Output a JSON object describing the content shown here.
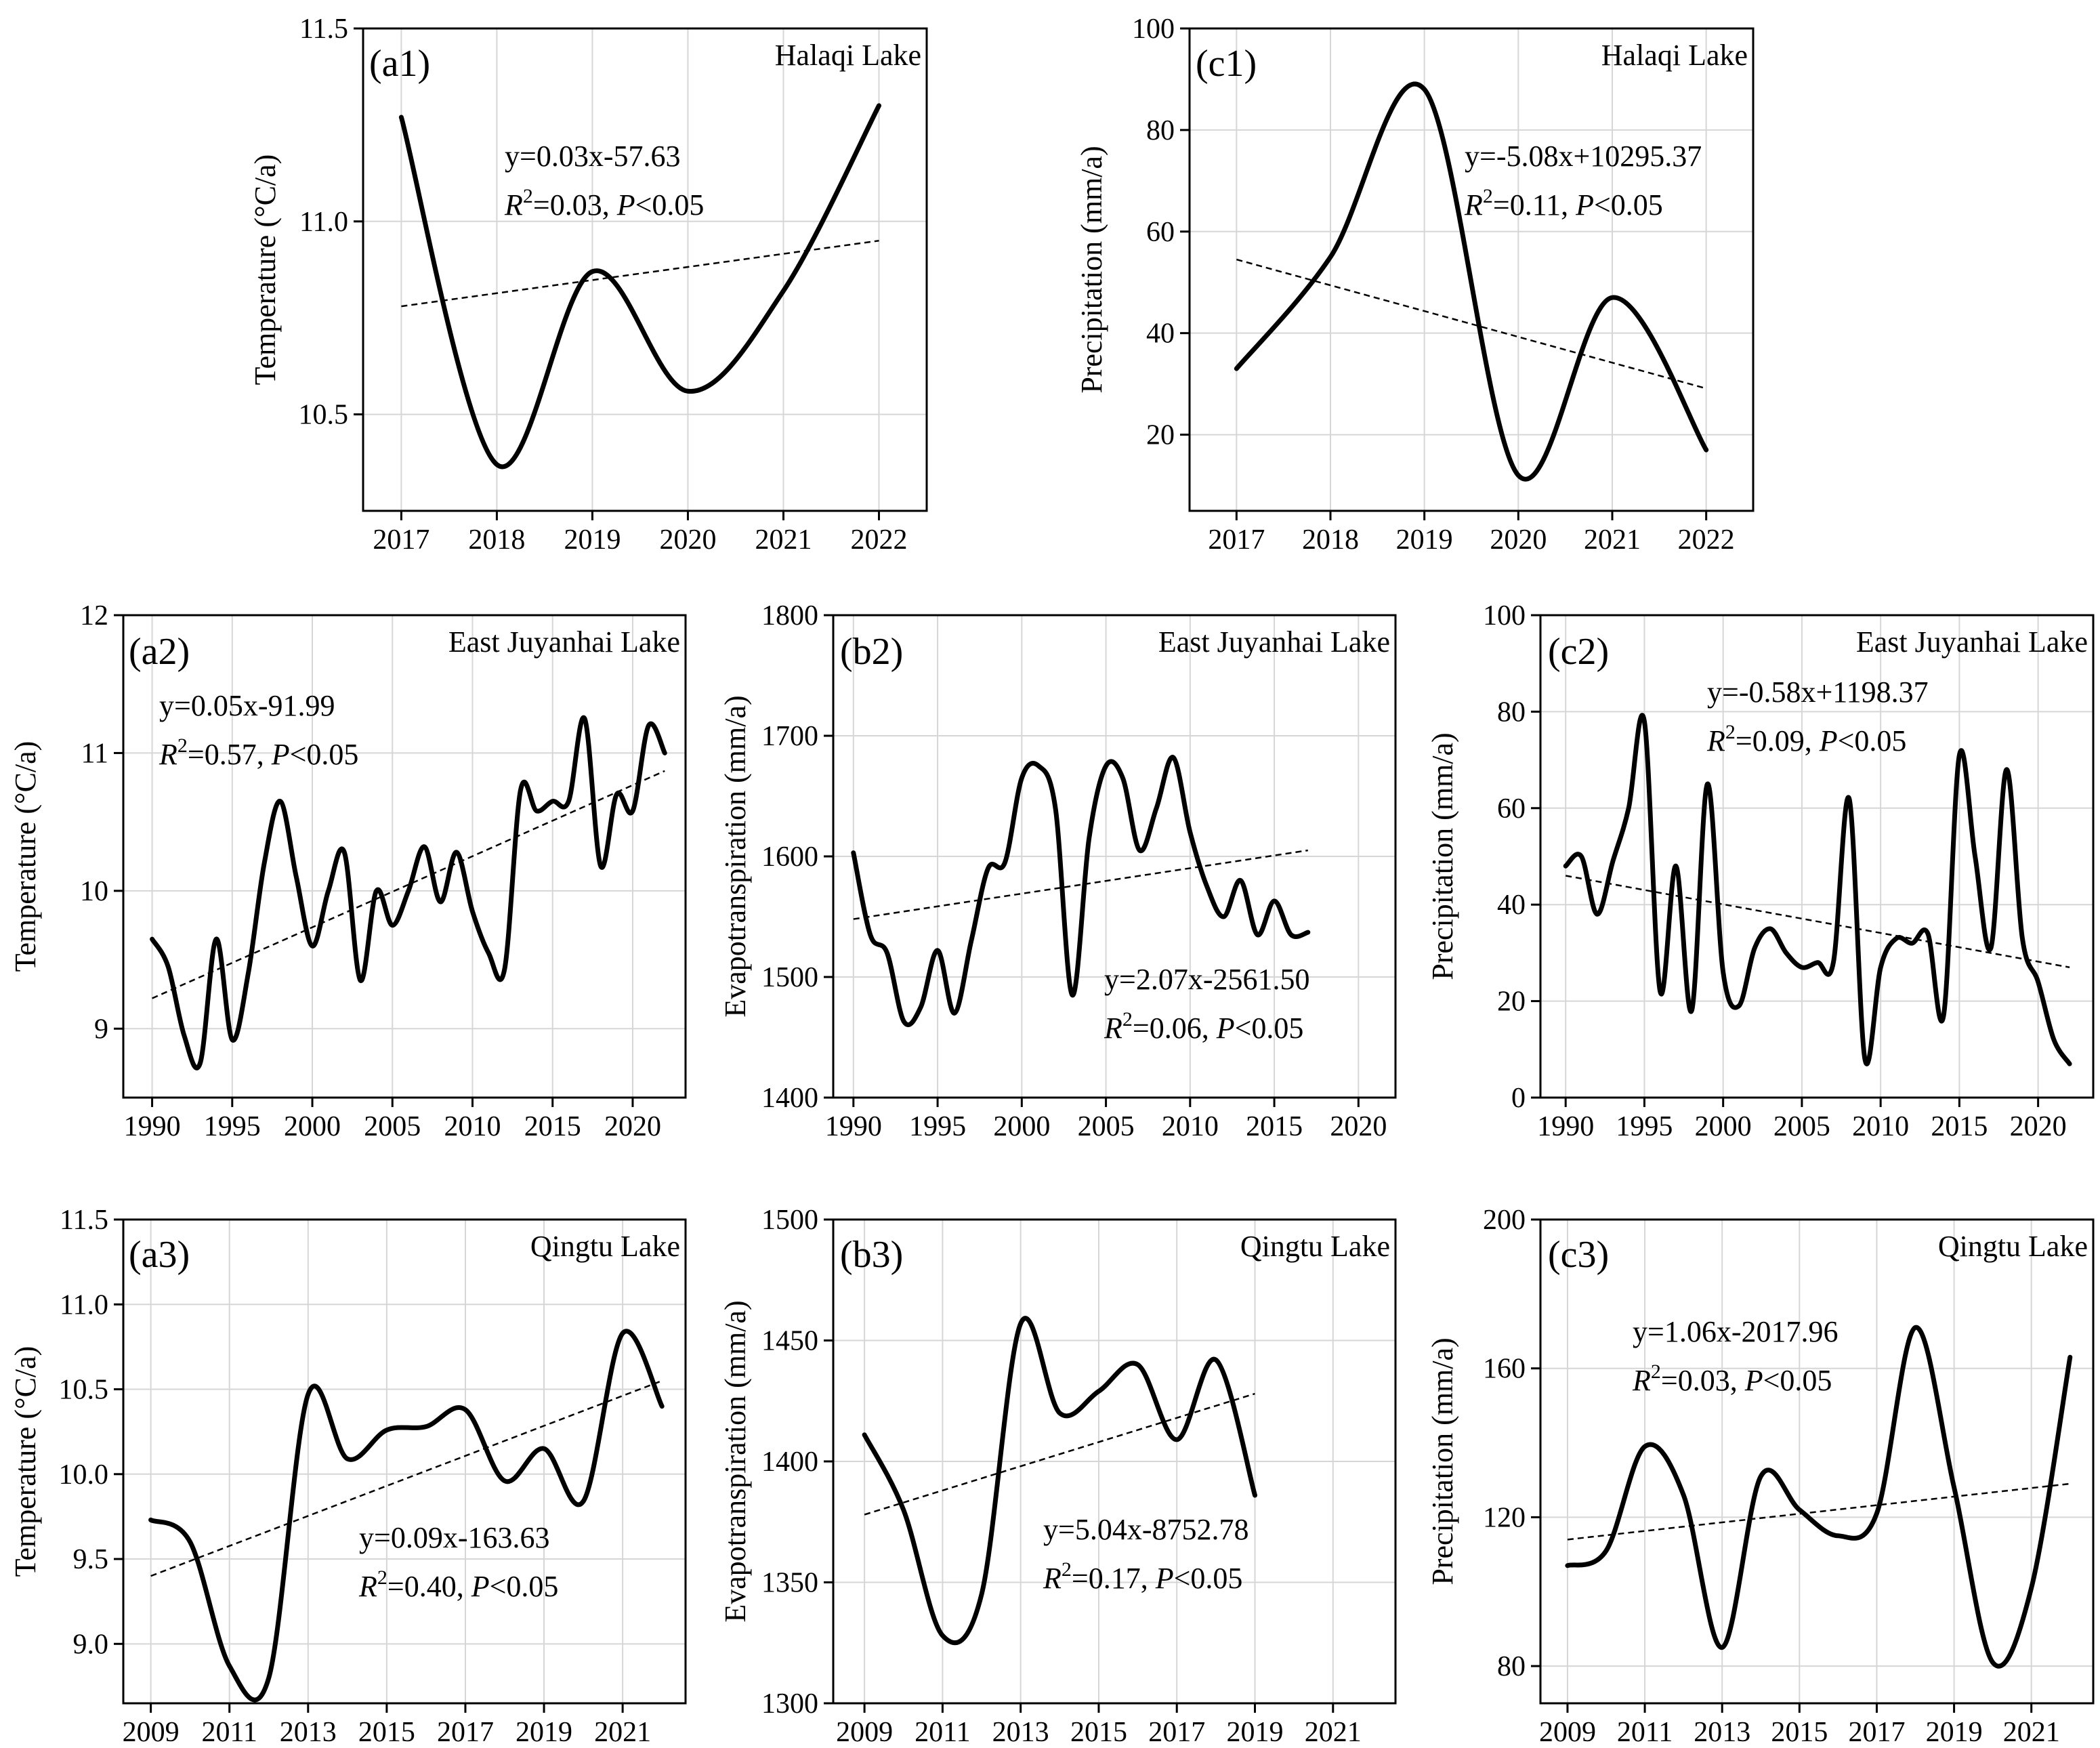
{
  "chart_data": [
    {
      "id": "a1",
      "panel_label": "(a1)",
      "lake": "Halaqi Lake",
      "type": "line",
      "ylabel": "Temperature (°C/a)",
      "xlabel": "",
      "x": [
        2017,
        2018,
        2019,
        2020,
        2021,
        2022
      ],
      "values": [
        11.27,
        10.37,
        10.87,
        10.56,
        10.82,
        11.3
      ],
      "xlim": [
        2016.6,
        2022.5
      ],
      "ylim": [
        10.25,
        11.5
      ],
      "xticks": [
        2017,
        2018,
        2019,
        2020,
        2021,
        2022
      ],
      "yticks": [
        10.5,
        11.0,
        11.5
      ],
      "ytick_labels": [
        "10.5",
        "11.0",
        "11.5"
      ],
      "trend": {
        "x": [
          2017,
          2022
        ],
        "y": [
          10.78,
          10.95
        ]
      },
      "equation": "y=0.03x-57.63",
      "r2_text": "=0.03, ",
      "p_text": "<0.05"
    },
    {
      "id": "c1",
      "panel_label": "(c1)",
      "lake": "Halaqi Lake",
      "type": "line",
      "ylabel": "Precipitation (mm/a)",
      "xlabel": "",
      "x": [
        2017,
        2018,
        2019,
        2020,
        2021,
        2022
      ],
      "values": [
        33,
        55,
        88,
        12,
        47,
        17
      ],
      "xlim": [
        2016.5,
        2022.5
      ],
      "ylim": [
        5,
        100
      ],
      "xticks": [
        2017,
        2018,
        2019,
        2020,
        2021,
        2022
      ],
      "yticks": [
        20,
        40,
        60,
        80,
        100
      ],
      "ytick_labels": [
        "20",
        "40",
        "60",
        "80",
        "100"
      ],
      "trend": {
        "x": [
          2017,
          2022
        ],
        "y": [
          54.5,
          29.1
        ]
      },
      "equation": "y=-5.08x+10295.37",
      "r2_text": "=0.11, ",
      "p_text": "<0.05"
    },
    {
      "id": "a2",
      "panel_label": "(a2)",
      "lake": "East Juyanhai Lake",
      "type": "line",
      "ylabel": "Temperature (°C/a)",
      "xlabel": "",
      "x": [
        1990,
        1991,
        1992,
        1993,
        1994,
        1995,
        1996,
        1997,
        1998,
        1999,
        2000,
        2001,
        2002,
        2003,
        2004,
        2005,
        2006,
        2007,
        2008,
        2009,
        2010,
        2011,
        2012,
        2013,
        2014,
        2015,
        2016,
        2017,
        2018,
        2019,
        2020,
        2021,
        2022
      ],
      "values": [
        9.65,
        9.45,
        8.95,
        8.75,
        9.65,
        8.92,
        9.4,
        10.2,
        10.65,
        10.1,
        9.6,
        10.0,
        10.28,
        9.35,
        10.0,
        9.75,
        10.0,
        10.32,
        9.92,
        10.28,
        9.85,
        9.55,
        9.43,
        10.73,
        10.58,
        10.65,
        10.65,
        11.25,
        10.18,
        10.7,
        10.58,
        11.2,
        11.0
      ],
      "xlim": [
        1988.2,
        2023.3
      ],
      "ylim": [
        8.5,
        12
      ],
      "xticks": [
        1990,
        1995,
        2000,
        2005,
        2010,
        2015,
        2020
      ],
      "yticks": [
        9,
        10,
        11,
        12
      ],
      "ytick_labels": [
        "9",
        "10",
        "11",
        "12"
      ],
      "trend": {
        "x": [
          1990,
          2022
        ],
        "y": [
          9.22,
          10.87
        ]
      },
      "equation": "y=0.05x-91.99",
      "r2_text": "=0.57, ",
      "p_text": "<0.05"
    },
    {
      "id": "b2",
      "panel_label": "(b2)",
      "lake": "East Juyanhai Lake",
      "type": "line",
      "ylabel": "Evapotranspiration (mm/a)",
      "xlabel": "",
      "x": [
        1990,
        1991,
        1992,
        1993,
        1994,
        1995,
        1996,
        1997,
        1998,
        1999,
        2000,
        2001,
        2002,
        2003,
        2004,
        2005,
        2006,
        2007,
        2008,
        2009,
        2010,
        2011,
        2012,
        2013,
        2014,
        2015,
        2016,
        2017
      ],
      "values": [
        1603,
        1535,
        1520,
        1463,
        1475,
        1522,
        1470,
        1530,
        1590,
        1595,
        1665,
        1675,
        1640,
        1485,
        1615,
        1675,
        1665,
        1605,
        1640,
        1682,
        1620,
        1575,
        1550,
        1580,
        1535,
        1563,
        1535,
        1537
      ],
      "xlim": [
        1988.8,
        2022.2
      ],
      "ylim": [
        1400,
        1800
      ],
      "xticks": [
        1990,
        1995,
        2000,
        2005,
        2010,
        2015,
        2020
      ],
      "yticks": [
        1400,
        1500,
        1600,
        1700,
        1800
      ],
      "ytick_labels": [
        "1400",
        "1500",
        "1600",
        "1700",
        "1800"
      ],
      "trend": {
        "x": [
          1990,
          2017
        ],
        "y": [
          1548,
          1605
        ]
      },
      "equation": "y=2.07x-2561.50",
      "r2_text": "=0.06, ",
      "p_text": "<0.05"
    },
    {
      "id": "c2",
      "panel_label": "(c2)",
      "lake": "East Juyanhai Lake",
      "type": "line",
      "ylabel": "Precipitation (mm/a)",
      "xlabel": "",
      "x": [
        1990,
        1991,
        1992,
        1993,
        1994,
        1995,
        1996,
        1997,
        1998,
        1999,
        2000,
        2001,
        2002,
        2003,
        2004,
        2005,
        2006,
        2007,
        2008,
        2009,
        2010,
        2011,
        2012,
        2013,
        2014,
        2015,
        2016,
        2017,
        2018,
        2019,
        2020,
        2021,
        2022
      ],
      "values": [
        48,
        50,
        38,
        49,
        60,
        78,
        22,
        48,
        18,
        65,
        26,
        19,
        31,
        35,
        30,
        27,
        28,
        28,
        62,
        8,
        27,
        33,
        32,
        34,
        17,
        71,
        50,
        31,
        68,
        33,
        24,
        12,
        7
      ],
      "xlim": [
        1988.4,
        2023.5
      ],
      "ylim": [
        0,
        100
      ],
      "xticks": [
        1990,
        1995,
        2000,
        2005,
        2010,
        2015,
        2020
      ],
      "yticks": [
        0,
        20,
        40,
        60,
        80,
        100
      ],
      "ytick_labels": [
        "0",
        "20",
        "40",
        "60",
        "80",
        "100"
      ],
      "trend": {
        "x": [
          1990,
          2022
        ],
        "y": [
          46,
          27
        ]
      },
      "equation": "y=-0.58x+1198.37",
      "r2_text": "=0.09, ",
      "p_text": "<0.05"
    },
    {
      "id": "a3",
      "panel_label": "(a3)",
      "lake": "Qingtu Lake",
      "type": "line",
      "ylabel": "Temperature (°C/a)",
      "xlabel": "",
      "x": [
        2009,
        2010,
        2011,
        2012,
        2013,
        2014,
        2015,
        2016,
        2017,
        2018,
        2019,
        2020,
        2021,
        2022
      ],
      "values": [
        9.73,
        9.6,
        8.87,
        8.8,
        10.47,
        10.09,
        10.26,
        10.28,
        10.38,
        9.96,
        10.15,
        9.84,
        10.83,
        10.4
      ],
      "xlim": [
        2008.3,
        2022.6
      ],
      "ylim": [
        8.65,
        11.5
      ],
      "xticks": [
        2009,
        2011,
        2013,
        2015,
        2017,
        2019,
        2021
      ],
      "yticks": [
        9.0,
        9.5,
        10.0,
        10.5,
        11.0,
        11.5
      ],
      "ytick_labels": [
        "9.0",
        "9.5",
        "10.0",
        "10.5",
        "11.0",
        "11.5"
      ],
      "trend": {
        "x": [
          2009,
          2022
        ],
        "y": [
          9.4,
          10.55
        ]
      },
      "equation": "y=0.09x-163.63",
      "r2_text": "=0.40, ",
      "p_text": "<0.05"
    },
    {
      "id": "b3",
      "panel_label": "(b3)",
      "lake": "Qingtu Lake",
      "type": "line",
      "ylabel": "Evapotranspiration (mm/a)",
      "xlabel": "",
      "x": [
        2009,
        2010,
        2011,
        2012,
        2013,
        2014,
        2015,
        2016,
        2017,
        2018,
        2019
      ],
      "values": [
        1411,
        1380,
        1328,
        1345,
        1457,
        1420,
        1429,
        1440,
        1409,
        1442,
        1386
      ],
      "xlim": [
        2008.2,
        2022.6
      ],
      "ylim": [
        1300,
        1500
      ],
      "xticks": [
        2009,
        2011,
        2013,
        2015,
        2017,
        2019,
        2021
      ],
      "yticks": [
        1300,
        1350,
        1400,
        1450,
        1500
      ],
      "ytick_labels": [
        "1300",
        "1350",
        "1400",
        "1450",
        "1500"
      ],
      "trend": {
        "x": [
          2009,
          2019
        ],
        "y": [
          1378,
          1428
        ]
      },
      "equation": "y=5.04x-8752.78",
      "r2_text": "=0.17, ",
      "p_text": "<0.05"
    },
    {
      "id": "c3",
      "panel_label": "(c3)",
      "lake": "Qingtu Lake",
      "type": "line",
      "ylabel": "Precipitation (mm/a)",
      "xlabel": "",
      "x": [
        2009,
        2010,
        2011,
        2012,
        2013,
        2014,
        2015,
        2016,
        2017,
        2018,
        2019,
        2020,
        2021,
        2022
      ],
      "values": [
        107,
        111,
        139,
        126,
        85,
        131,
        122,
        115,
        121,
        171,
        128,
        81,
        101,
        163
      ],
      "xlim": [
        2008.3,
        2022.6
      ],
      "ylim": [
        70,
        200
      ],
      "xticks": [
        2009,
        2011,
        2013,
        2015,
        2017,
        2019,
        2021
      ],
      "yticks": [
        80,
        120,
        160,
        200
      ],
      "ytick_labels": [
        "80",
        "120",
        "160",
        "200"
      ],
      "trend": {
        "x": [
          2009,
          2022
        ],
        "y": [
          114,
          129
        ]
      },
      "equation": "y=1.06x-2017.96",
      "r2_text": "=0.03, ",
      "p_text": "<0.05"
    }
  ]
}
